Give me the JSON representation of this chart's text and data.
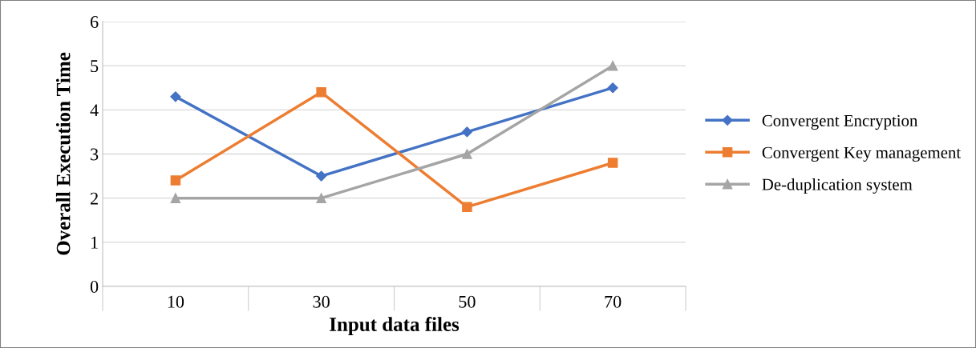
{
  "chart_data": {
    "type": "line",
    "xlabel": "Input data files",
    "ylabel": "Overall Execution Time",
    "categories": [
      "10",
      "30",
      "50",
      "70"
    ],
    "series": [
      {
        "name": "Convergent Encryption",
        "color": "#4472c4",
        "marker": "diamond",
        "values": [
          4.3,
          2.5,
          3.5,
          4.5
        ]
      },
      {
        "name": "Convergent Key management",
        "color": "#ed7d31",
        "marker": "square",
        "values": [
          2.4,
          4.4,
          1.8,
          2.8
        ]
      },
      {
        "name": "De-duplication system",
        "color": "#a5a5a5",
        "marker": "triangle",
        "values": [
          2,
          2,
          3,
          5
        ]
      }
    ],
    "ylim": [
      0,
      6
    ],
    "yticks": [
      0,
      1,
      2,
      3,
      4,
      5,
      6
    ],
    "grid": "y",
    "legend": "right",
    "line_style": "solid"
  }
}
